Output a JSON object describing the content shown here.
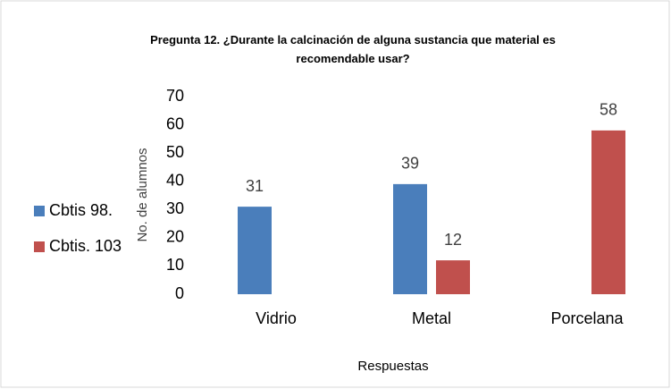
{
  "chart_data": {
    "type": "bar",
    "title": "Pregunta 12. ¿Durante la calcinación de alguna sustancia que material es recomendable usar?",
    "x_label": "Respuestas",
    "y_label": "No. de alumnos",
    "categories": [
      "Vidrio",
      "Metal",
      "Porcelana"
    ],
    "series": [
      {
        "name": "Cbtis 98.",
        "color": "#4a7ebb",
        "values": [
          31,
          39,
          null
        ]
      },
      {
        "name": "Cbtis. 103",
        "color": "#c0504d",
        "values": [
          null,
          12,
          58
        ]
      }
    ],
    "ylim": [
      0,
      70
    ],
    "yticks": [
      0,
      10,
      20,
      30,
      40,
      50,
      60,
      70
    ],
    "grid": false,
    "legend": "left"
  }
}
